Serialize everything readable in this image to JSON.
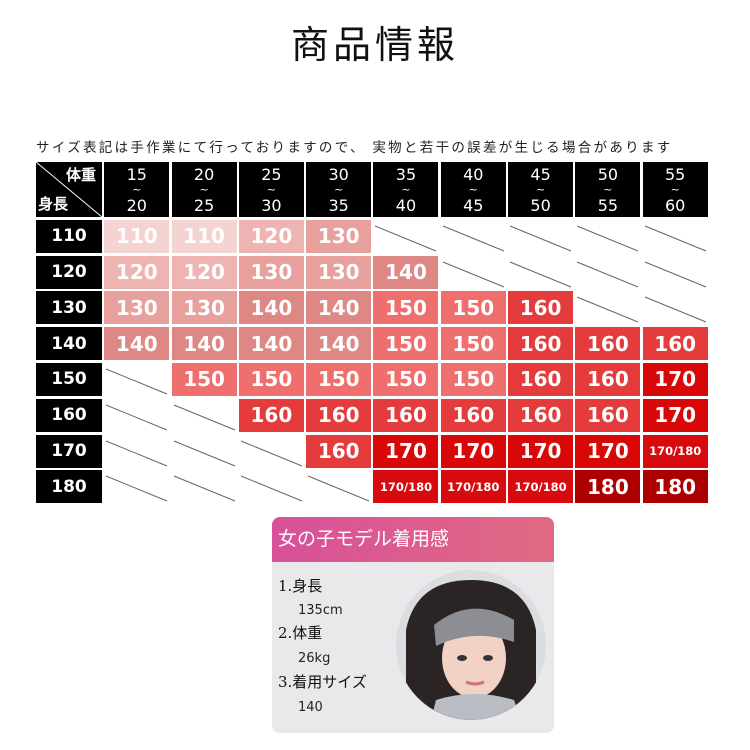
{
  "title": "商品情報",
  "note": "サイズ表記は手作業にて行っておりますので、 実物と若干の誤差が生じる場合があります",
  "table": {
    "corner_weight": "体重",
    "corner_height": "身長",
    "weight_columns": [
      {
        "from": "15",
        "to": "20"
      },
      {
        "from": "20",
        "to": "25"
      },
      {
        "from": "25",
        "to": "30"
      },
      {
        "from": "30",
        "to": "35"
      },
      {
        "from": "35",
        "to": "40"
      },
      {
        "from": "40",
        "to": "45"
      },
      {
        "from": "45",
        "to": "50"
      },
      {
        "from": "50",
        "to": "55"
      },
      {
        "from": "55",
        "to": "60"
      }
    ],
    "tilde": "~",
    "rows": [
      {
        "height": "110",
        "sizes": [
          "110",
          "110",
          "120",
          "130",
          null,
          null,
          null,
          null,
          null
        ]
      },
      {
        "height": "120",
        "sizes": [
          "120",
          "120",
          "130",
          "130",
          "140",
          null,
          null,
          null,
          null
        ]
      },
      {
        "height": "130",
        "sizes": [
          "130",
          "130",
          "140",
          "140",
          "150",
          "150",
          "160",
          null,
          null
        ]
      },
      {
        "height": "140",
        "sizes": [
          "140",
          "140",
          "140",
          "140",
          "150",
          "150",
          "160",
          "160",
          "160"
        ]
      },
      {
        "height": "150",
        "sizes": [
          null,
          "150",
          "150",
          "150",
          "150",
          "150",
          "160",
          "160",
          "170"
        ]
      },
      {
        "height": "160",
        "sizes": [
          null,
          null,
          "160",
          "160",
          "160",
          "160",
          "160",
          "160",
          "170"
        ]
      },
      {
        "height": "170",
        "sizes": [
          null,
          null,
          null,
          "160",
          "170",
          "170",
          "170",
          "170",
          "170/180"
        ]
      },
      {
        "height": "180",
        "sizes": [
          null,
          null,
          null,
          null,
          "170/180",
          "170/180",
          "170/180",
          "180",
          "180"
        ]
      }
    ],
    "size_colors": {
      "110": "#f5d3d1",
      "120": "#eeb4b1",
      "130": "#e8a09c",
      "140": "#dd8884",
      "150": "#ef6f6e",
      "160": "#e43c3c",
      "170": "#d80808",
      "170/180": "#d70a0e",
      "180": "#ac0000"
    }
  },
  "model_card": {
    "heading": "女の子モデル着用感",
    "items": [
      {
        "label": "1.身長",
        "value": "135cm"
      },
      {
        "label": "2.体重",
        "value": "26kg"
      },
      {
        "label": "3.着用サイズ",
        "value": "140"
      }
    ]
  }
}
